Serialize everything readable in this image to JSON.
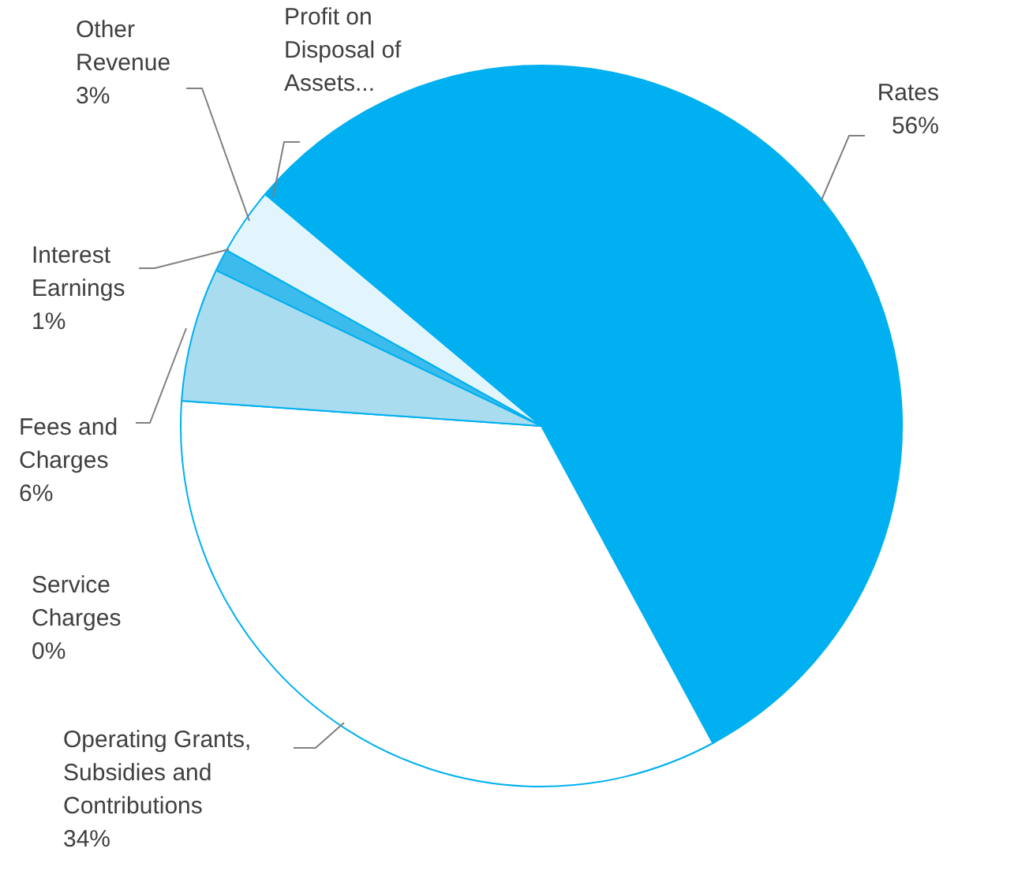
{
  "chart_data": {
    "type": "pie",
    "categories": [
      "Rates",
      "Operating Grants, Subsidies and Contributions",
      "Service Charges",
      "Fees and Charges",
      "Interest Earnings",
      "Other Revenue",
      "Profit on Disposal of Assets..."
    ],
    "values": [
      56,
      34,
      0,
      6,
      1,
      3,
      0
    ],
    "value_labels": [
      "56%",
      "34%",
      "0%",
      "6%",
      "1%",
      "3%",
      null
    ],
    "colors": [
      "#00b0f0",
      "#ffffff",
      "#ffffff",
      "#a9dcef",
      "#3cbcec",
      "#e3f5fc",
      "#ffffff"
    ],
    "legend": false
  }
}
